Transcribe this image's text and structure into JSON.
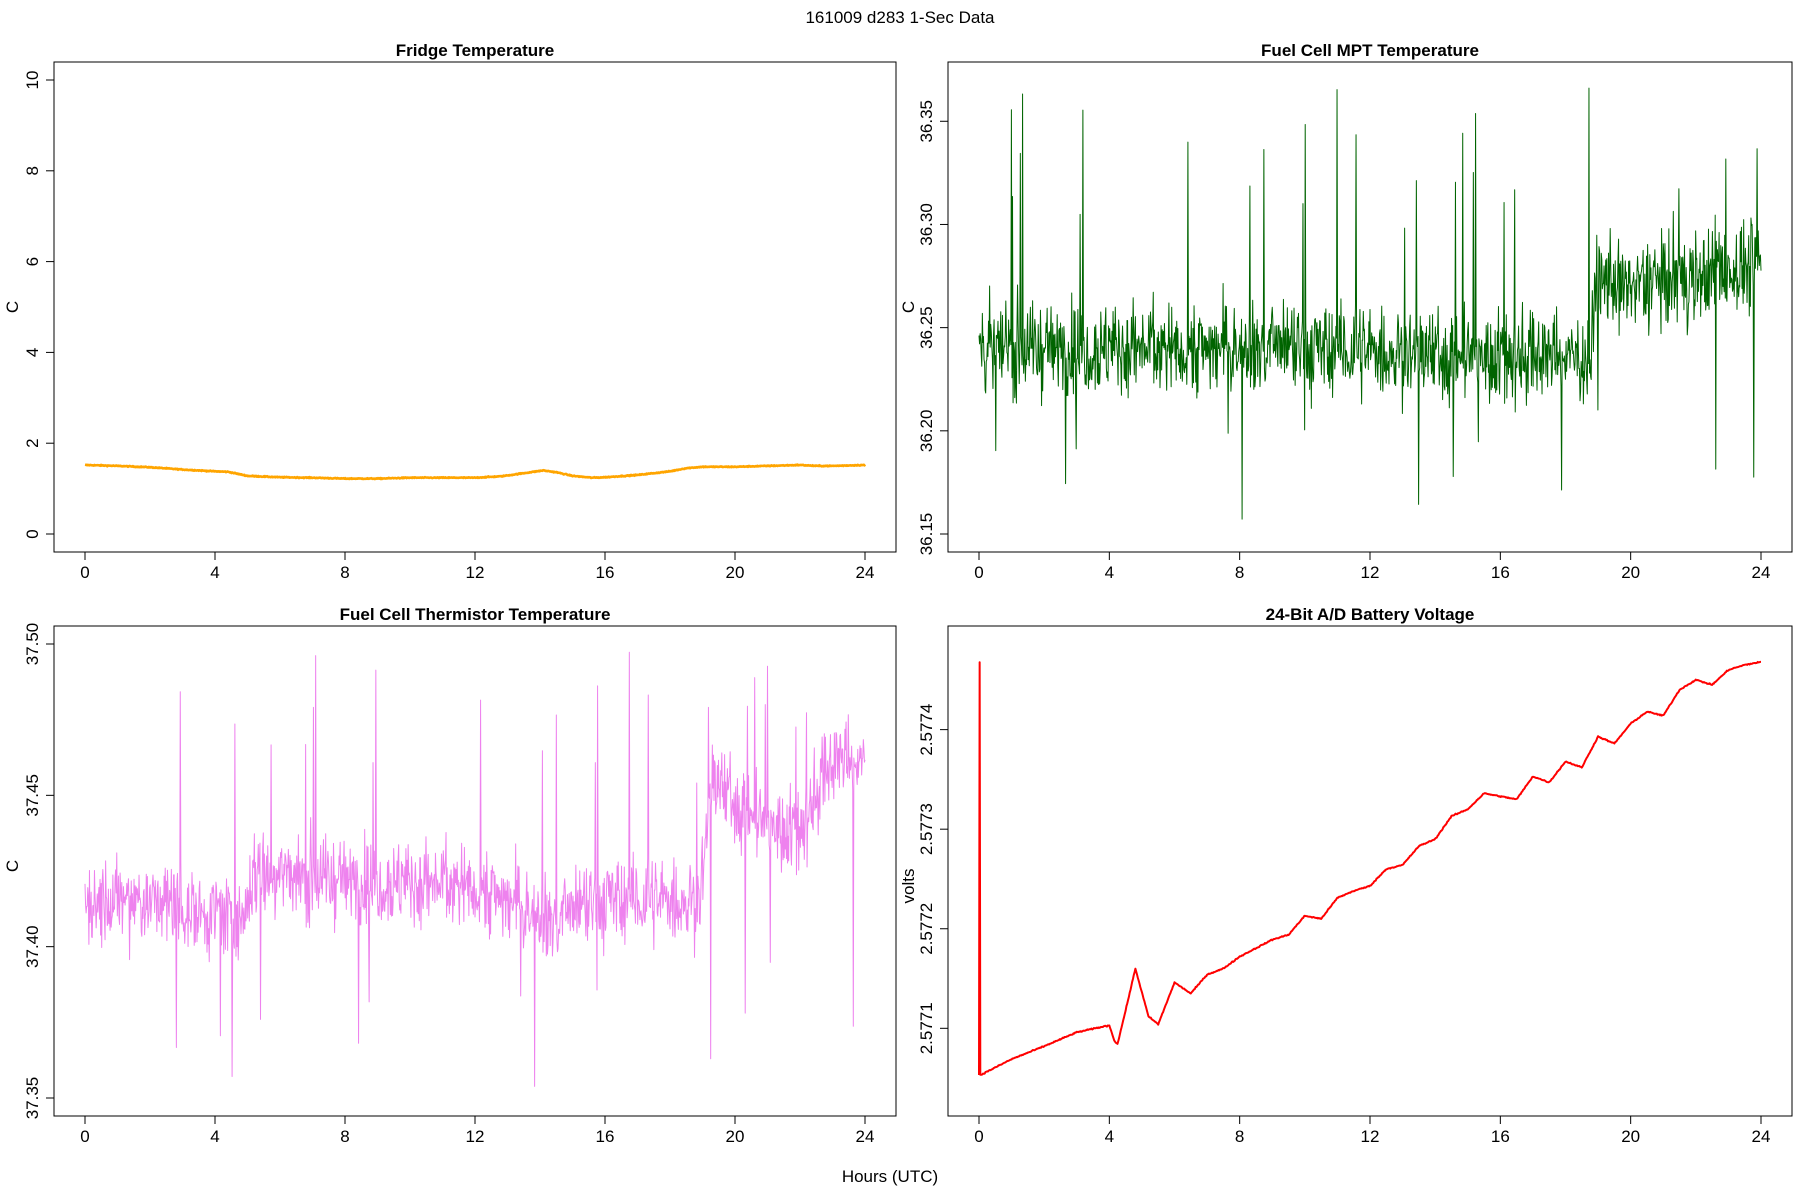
{
  "figure": {
    "suptitle": "161009   d283   1-Sec Data",
    "xlabel": "Hours (UTC)"
  },
  "chart_data": [
    {
      "type": "line",
      "title": "Fridge Temperature",
      "xlabel": "Hours (UTC)",
      "ylabel": "C",
      "xlim": [
        0,
        24
      ],
      "ylim": [
        0,
        10
      ],
      "xticks": [
        0,
        4,
        8,
        12,
        16,
        20,
        24
      ],
      "xtick_labels": [
        "0",
        "4",
        "8",
        "12",
        "16",
        "20",
        "24"
      ],
      "yticks": [
        0,
        2,
        4,
        6,
        8,
        10
      ],
      "ytick_labels": [
        "0",
        "2",
        "4",
        "6",
        "8",
        "10"
      ],
      "color": "#ffa500",
      "series": [
        {
          "name": "Fridge Temperature",
          "x": [
            0,
            1,
            2,
            3,
            4,
            4.4,
            5,
            6,
            7,
            8,
            9,
            10,
            11,
            12,
            12.8,
            13.5,
            14.1,
            14.5,
            15,
            15.6,
            16,
            17,
            18,
            18.5,
            19,
            20,
            21,
            22,
            22.5,
            23,
            24
          ],
          "y": [
            1.52,
            1.5,
            1.47,
            1.42,
            1.38,
            1.37,
            1.28,
            1.25,
            1.24,
            1.22,
            1.22,
            1.24,
            1.24,
            1.24,
            1.27,
            1.34,
            1.4,
            1.36,
            1.28,
            1.24,
            1.25,
            1.3,
            1.38,
            1.45,
            1.48,
            1.48,
            1.5,
            1.52,
            1.5,
            1.5,
            1.52
          ],
          "noise": 0.01
        }
      ]
    },
    {
      "type": "line",
      "title": "Fuel Cell MPT Temperature",
      "xlabel": "Hours (UTC)",
      "ylabel": "C",
      "xlim": [
        0,
        24
      ],
      "ylim": [
        36.15,
        36.37
      ],
      "xticks": [
        0,
        4,
        8,
        12,
        16,
        20,
        24
      ],
      "xtick_labels": [
        "0",
        "4",
        "8",
        "12",
        "16",
        "20",
        "24"
      ],
      "yticks": [
        36.15,
        36.2,
        36.25,
        36.3,
        36.35
      ],
      "ytick_labels": [
        "36.15",
        "36.20",
        "36.25",
        "36.30",
        "36.35"
      ],
      "color": "#006400",
      "series": [
        {
          "name": "Fuel Cell MPT Temperature",
          "x": [
            0,
            4,
            8,
            12,
            16,
            18.8,
            18.9,
            20,
            22,
            24
          ],
          "y": [
            36.24,
            36.24,
            36.24,
            36.238,
            36.236,
            36.236,
            36.27,
            36.27,
            36.275,
            36.28
          ],
          "noise": 0.022,
          "spike_max": 36.368,
          "spike_min": 36.156
        }
      ]
    },
    {
      "type": "line",
      "title": "Fuel Cell Thermistor Temperature",
      "xlabel": "Hours (UTC)",
      "ylabel": "C",
      "xlim": [
        0,
        24
      ],
      "ylim": [
        37.35,
        37.5
      ],
      "xticks": [
        0,
        4,
        8,
        12,
        16,
        20,
        24
      ],
      "xtick_labels": [
        "0",
        "4",
        "8",
        "12",
        "16",
        "20",
        "24"
      ],
      "yticks": [
        37.35,
        37.4,
        37.45,
        37.5
      ],
      "ytick_labels": [
        "37.35",
        "37.40",
        "37.45",
        "37.50"
      ],
      "color": "#ee82ee",
      "series": [
        {
          "name": "Fuel Cell Thermistor Temperature",
          "x": [
            0,
            2,
            4.5,
            4.8,
            5.2,
            8,
            12,
            14.5,
            15.2,
            16,
            18.9,
            19.3,
            20,
            21,
            22,
            22.8,
            23.2,
            24
          ],
          "y": [
            37.415,
            37.415,
            37.41,
            37.405,
            37.425,
            37.422,
            37.42,
            37.408,
            37.412,
            37.415,
            37.415,
            37.455,
            37.448,
            37.44,
            37.438,
            37.458,
            37.462,
            37.46
          ],
          "noise": 0.014,
          "spike_max": 37.499,
          "spike_min": 37.353
        }
      ]
    },
    {
      "type": "line",
      "title": "24-Bit A/D Battery Voltage",
      "xlabel": "Hours (UTC)",
      "ylabel": "volts",
      "xlim": [
        0,
        24
      ],
      "ylim": [
        2.57703,
        2.577486
      ],
      "xticks": [
        0,
        4,
        8,
        12,
        16,
        20,
        24
      ],
      "xtick_labels": [
        "0",
        "4",
        "8",
        "12",
        "16",
        "20",
        "24"
      ],
      "yticks": [
        2.5771,
        2.5772,
        2.5773,
        2.5774
      ],
      "ytick_labels": [
        "2.5771",
        "2.5772",
        "2.5773",
        "2.5774"
      ],
      "color": "#ff0000",
      "series": [
        {
          "name": "Battery Voltage",
          "x": [
            0,
            0.02,
            0.04,
            0.1,
            1,
            2,
            3,
            4,
            4.15,
            4.25,
            4.5,
            4.8,
            5.2,
            5.5,
            6,
            6.5,
            7,
            7.5,
            8,
            9,
            9.5,
            10,
            10.5,
            11,
            11.5,
            12,
            12.5,
            13,
            13.5,
            14,
            14.5,
            15,
            15.5,
            16,
            16.5,
            17,
            17.5,
            18,
            18.5,
            19,
            19.5,
            20,
            20.5,
            21,
            21.5,
            22,
            22.5,
            23,
            23.5,
            24
          ],
          "y": [
            2.577053,
            2.577468,
            2.577053,
            2.577054,
            2.577069,
            2.577082,
            2.577096,
            2.577103,
            2.577088,
            2.577084,
            2.577118,
            2.57716,
            2.577112,
            2.577104,
            2.577146,
            2.577135,
            2.577154,
            2.57716,
            2.577172,
            2.577189,
            2.577194,
            2.577213,
            2.57721,
            2.577231,
            2.577238,
            2.577243,
            2.57726,
            2.577264,
            2.577283,
            2.57729,
            2.577313,
            2.57732,
            2.577336,
            2.577333,
            2.57733,
            2.577353,
            2.577347,
            2.577368,
            2.577362,
            2.577393,
            2.577386,
            2.577406,
            2.577418,
            2.577414,
            2.57744,
            2.57745,
            2.577445,
            2.57746,
            2.577465,
            2.577468
          ],
          "noise": 6e-07
        }
      ]
    }
  ]
}
